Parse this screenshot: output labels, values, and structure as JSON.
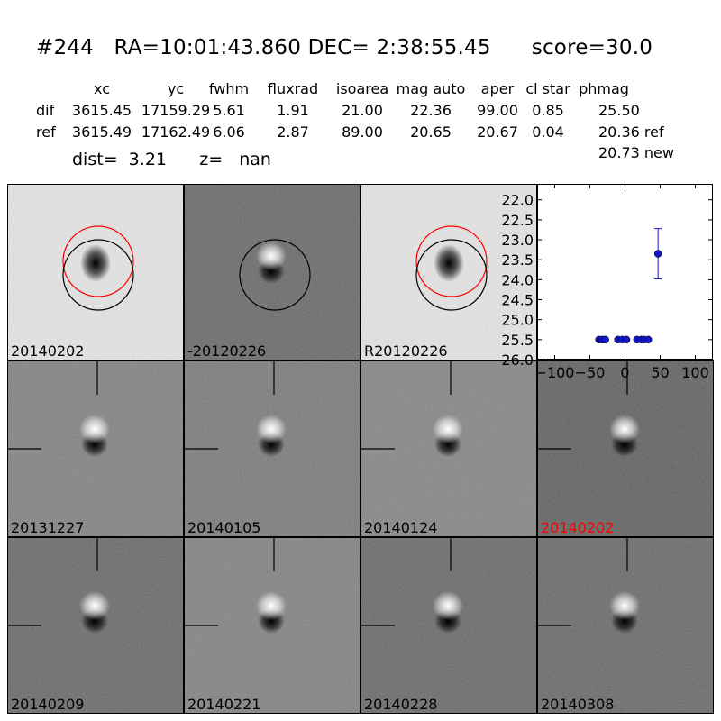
{
  "header": {
    "title": "#244   RA=10:01:43.860 DEC= 2:38:55.45      score=30.0",
    "columns": [
      "xc",
      "yc",
      "fwhm",
      "fluxrad",
      "isoarea",
      "mag auto",
      "aper",
      "cl star",
      "phmag"
    ],
    "rows": [
      {
        "name": "dif",
        "values": [
          "3615.45",
          "17159.29",
          "5.61",
          "1.91",
          "21.00",
          "22.36",
          "99.00",
          "0.85",
          "25.50"
        ]
      },
      {
        "name": "ref",
        "values": [
          "3615.49",
          "17162.49",
          "6.06",
          "2.87",
          "89.00",
          "20.65",
          "20.67",
          "0.04",
          "20.36 ref"
        ]
      }
    ],
    "new_mag": "20.73 new",
    "dist_line": "dist=  3.21      z=   nan"
  },
  "top_panels": [
    {
      "label": "20140202",
      "bg": "#e4e4e4",
      "style": "dark-blob",
      "circles": [
        "red",
        "black"
      ]
    },
    {
      "label": "-20120226",
      "bg": "#6e6e6e",
      "style": "dipole",
      "circles": [
        "black"
      ]
    },
    {
      "label": "R20120226",
      "bg": "#e4e4e4",
      "style": "dark-blob",
      "circles": [
        "red",
        "black"
      ]
    }
  ],
  "grid_panels": [
    {
      "label": "20131227",
      "bg": "#858585",
      "highlight": false
    },
    {
      "label": "20140105",
      "bg": "#7e7e7e",
      "highlight": false
    },
    {
      "label": "20140124",
      "bg": "#888888",
      "highlight": false
    },
    {
      "label": "20140202",
      "bg": "#666666",
      "highlight": true
    },
    {
      "label": "20140209",
      "bg": "#6e6e6e",
      "highlight": false
    },
    {
      "label": "20140221",
      "bg": "#858585",
      "highlight": false
    },
    {
      "label": "20140228",
      "bg": "#6e6e6e",
      "highlight": false
    },
    {
      "label": "20140308",
      "bg": "#6e6e6e",
      "highlight": false
    }
  ],
  "colors": {
    "highlight_label": "#ff0000",
    "series": "#1515c8",
    "red_circle": "#ff0000"
  },
  "chart_data": {
    "type": "scatter",
    "title": "",
    "xlabel": "",
    "ylabel": "",
    "xlim": [
      -125,
      125
    ],
    "ylim": [
      26.0,
      21.6
    ],
    "y_inverted": true,
    "xticks": [
      -100,
      -50,
      0,
      50,
      100
    ],
    "xtick_labels": [
      "−100",
      "−50",
      "0",
      "50",
      "100"
    ],
    "yticks": [
      22.0,
      22.5,
      23.0,
      23.5,
      24.0,
      24.5,
      25.0,
      25.5,
      26.0
    ],
    "ytick_labels": [
      "22.0",
      "22.5",
      "23.0",
      "23.5",
      "24.0",
      "24.5",
      "25.0",
      "25.5",
      "26.0"
    ],
    "series": [
      {
        "x": [
          -37,
          -32,
          -28,
          -10,
          -4,
          2,
          17,
          23,
          27,
          33,
          47
        ],
        "y": [
          25.5,
          25.5,
          25.5,
          25.5,
          25.5,
          25.5,
          25.5,
          25.5,
          25.5,
          25.5,
          23.35
        ],
        "yerr": [
          0,
          0,
          0,
          0,
          0,
          0,
          0,
          0,
          0,
          0,
          0.63
        ]
      }
    ]
  }
}
